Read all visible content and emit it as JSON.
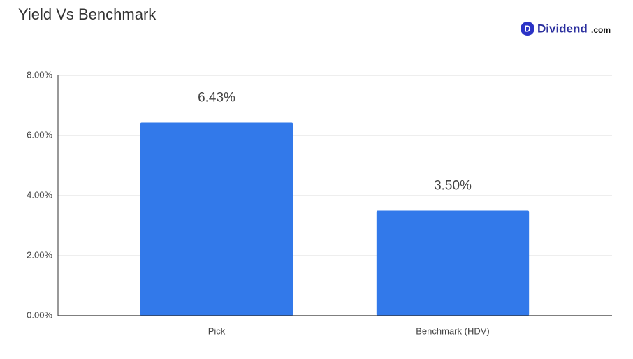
{
  "chart_data": {
    "type": "bar",
    "title": "Yield Vs Benchmark",
    "logo": {
      "icon": "D",
      "name": "Dividend",
      "suffix": ".com"
    },
    "categories": [
      "Pick",
      "Benchmark (HDV)"
    ],
    "values": [
      6.43,
      3.5
    ],
    "value_labels": [
      "6.43%",
      "3.50%"
    ],
    "color": "#3279ea",
    "ylim": [
      0,
      8
    ],
    "yticks": [
      {
        "value": 0,
        "label": "0.00%"
      },
      {
        "value": 2,
        "label": "2.00%"
      },
      {
        "value": 4,
        "label": "4.00%"
      },
      {
        "value": 6,
        "label": "6.00%"
      },
      {
        "value": 8,
        "label": "8.00%"
      }
    ],
    "grid": true
  }
}
